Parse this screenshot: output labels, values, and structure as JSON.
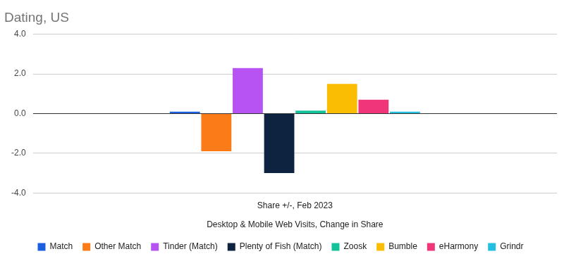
{
  "chart_data": {
    "type": "bar",
    "title": "Dating, US",
    "xlabel": "Desktop & Mobile Web Visits, Change in Share",
    "categories": [
      "Share +/-, Feb 2023"
    ],
    "series": [
      {
        "name": "Match",
        "color": "#1a5fe0",
        "values": [
          0.1
        ]
      },
      {
        "name": "Other Match",
        "color": "#fa7b17",
        "values": [
          -1.9
        ]
      },
      {
        "name": "Tinder (Match)",
        "color": "#b653f2",
        "values": [
          2.3
        ]
      },
      {
        "name": "Plenty of Fish (Match)",
        "color": "#0d2340",
        "values": [
          -3.0
        ]
      },
      {
        "name": "Zoosk",
        "color": "#12c29a",
        "values": [
          0.15
        ]
      },
      {
        "name": "Bumble",
        "color": "#fbbc04",
        "values": [
          1.5
        ]
      },
      {
        "name": "eHarmony",
        "color": "#f0357a",
        "values": [
          0.7
        ]
      },
      {
        "name": "Grindr",
        "color": "#22bfe0",
        "values": [
          0.1
        ]
      }
    ],
    "ylim": [
      -4,
      4
    ],
    "yticks": [
      {
        "value": -4,
        "label": "-4.0"
      },
      {
        "value": -2,
        "label": "-2.0"
      },
      {
        "value": 0,
        "label": "0.0"
      },
      {
        "value": 2,
        "label": "2.0"
      },
      {
        "value": 4,
        "label": "4.0"
      }
    ],
    "grid": true,
    "legend": "bottom"
  }
}
